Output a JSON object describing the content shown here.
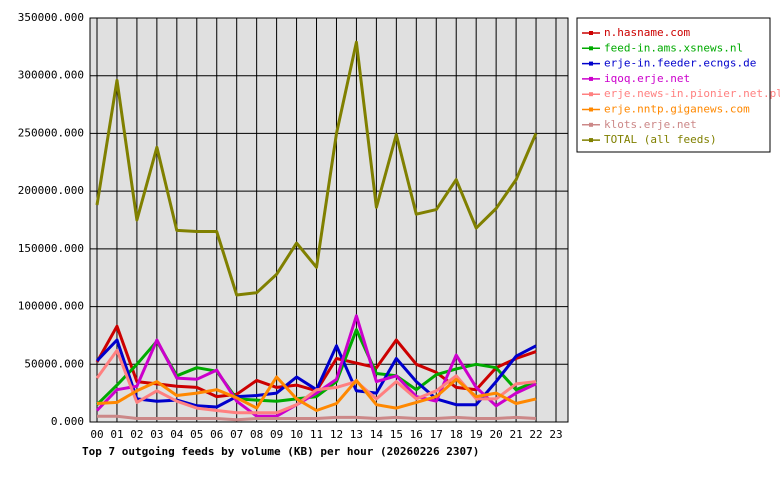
{
  "chart_data": {
    "type": "line",
    "title": "Top 7 outgoing feeds by volume (KB) per hour (20260226 2307)",
    "categories": [
      "00",
      "01",
      "02",
      "03",
      "04",
      "05",
      "06",
      "07",
      "08",
      "09",
      "10",
      "11",
      "12",
      "13",
      "14",
      "15",
      "16",
      "17",
      "18",
      "19",
      "20",
      "21",
      "22",
      "23"
    ],
    "ylim": [
      0,
      350000
    ],
    "yticks": [
      {
        "value": 0,
        "label": "0.000"
      },
      {
        "value": 50000,
        "label": "50000.000"
      },
      {
        "value": 100000,
        "label": "100000.000"
      },
      {
        "value": 150000,
        "label": "150000.000"
      },
      {
        "value": 200000,
        "label": "200000.000"
      },
      {
        "value": 250000,
        "label": "250000.000"
      },
      {
        "value": 300000,
        "label": "300000.000"
      },
      {
        "value": 350000,
        "label": "350000.000"
      }
    ],
    "grid": true,
    "legend": "right",
    "series": [
      {
        "name": "n.hasname.com",
        "color": "#cc0000",
        "values": [
          52000,
          83000,
          35000,
          33000,
          31000,
          30000,
          22000,
          24000,
          36000,
          30000,
          32000,
          27000,
          55000,
          51000,
          47000,
          71000,
          50000,
          43000,
          30000,
          28000,
          47000,
          55000,
          61000,
          null
        ]
      },
      {
        "name": "feed-in.ams.xsnews.nl",
        "color": "#00aa00",
        "values": [
          15000,
          32000,
          50000,
          70000,
          40000,
          47000,
          44000,
          20000,
          19000,
          18000,
          20000,
          22000,
          35000,
          80000,
          42000,
          40000,
          28000,
          41000,
          46000,
          50000,
          47000,
          28000,
          35000,
          null
        ]
      },
      {
        "name": "erje-in.feeder.ecngs.de",
        "color": "#0000cc",
        "values": [
          53000,
          71000,
          20000,
          18000,
          19000,
          14000,
          13000,
          22000,
          23000,
          25000,
          39000,
          28000,
          66000,
          27000,
          25000,
          55000,
          35000,
          20000,
          15000,
          15000,
          35000,
          57000,
          66000,
          null
        ]
      },
      {
        "name": "iqoq.erje.net",
        "color": "#cc00cc",
        "values": [
          10000,
          28000,
          31000,
          71000,
          38000,
          37000,
          45000,
          18000,
          5000,
          5000,
          15000,
          25000,
          37000,
          92000,
          35000,
          40000,
          22000,
          18000,
          58000,
          30000,
          14000,
          25000,
          33000,
          null
        ]
      },
      {
        "name": "erje.news-in.pionier.net.pl",
        "color": "#ff8080",
        "values": [
          38000,
          62000,
          17000,
          27000,
          18000,
          12000,
          10000,
          8000,
          8000,
          8000,
          15000,
          28000,
          30000,
          35000,
          20000,
          35000,
          20000,
          27000,
          40000,
          20000,
          20000,
          33000,
          35000,
          null
        ]
      },
      {
        "name": "erje.nntp.giganews.com",
        "color": "#ff8800",
        "values": [
          16000,
          17000,
          27000,
          35000,
          23000,
          25000,
          28000,
          21000,
          12000,
          39000,
          20000,
          10000,
          16000,
          36000,
          15000,
          12000,
          17000,
          22000,
          37000,
          22000,
          25000,
          16000,
          20000,
          null
        ]
      },
      {
        "name": "klots.erje.net",
        "color": "#cc8888",
        "values": [
          5000,
          5000,
          3000,
          3000,
          3000,
          3000,
          3000,
          2000,
          3000,
          3000,
          3000,
          3000,
          4000,
          4000,
          3000,
          4000,
          3000,
          3000,
          4000,
          3000,
          3000,
          4000,
          3000,
          null
        ]
      },
      {
        "name": "TOTAL (all feeds)",
        "color": "#808000",
        "values": [
          188000,
          296000,
          175000,
          238000,
          166000,
          165000,
          165000,
          110000,
          112000,
          128000,
          155000,
          134000,
          250000,
          329000,
          186000,
          249000,
          180000,
          184000,
          210000,
          168000,
          185000,
          210000,
          250000,
          null
        ]
      }
    ]
  }
}
